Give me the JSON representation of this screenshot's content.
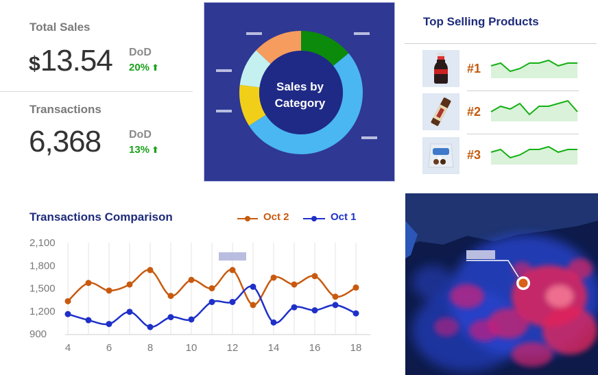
{
  "kpis": {
    "total_sales": {
      "title": "Total Sales",
      "currency": "$",
      "value": "13.54",
      "dod_label": "DoD",
      "change": "20%"
    },
    "transactions": {
      "title": "Transactions",
      "value": "6,368",
      "dod_label": "DoD",
      "change": "13%"
    }
  },
  "donut": {
    "center_line1": "Sales by",
    "center_line2": "Category",
    "colors": {
      "panel": "#2f3893",
      "center": "#1f2a86"
    },
    "slices": [
      {
        "value": 14,
        "color": "#0c8a0c"
      },
      {
        "value": 52,
        "color": "#4ab6f2"
      },
      {
        "value": 11,
        "color": "#f1cf18"
      },
      {
        "value": 10,
        "color": "#c4f1ef"
      },
      {
        "value": 13,
        "color": "#f69c5e"
      }
    ]
  },
  "top_selling": {
    "title": "Top Selling Products",
    "products": [
      {
        "rank": "#1",
        "image": "cola-bottle",
        "trend": [
          5,
          6,
          3,
          4,
          6,
          6,
          7,
          5,
          6,
          6
        ]
      },
      {
        "rank": "#2",
        "image": "chocolate-bar",
        "trend": [
          4,
          6,
          5,
          7,
          3,
          6,
          6,
          7,
          8,
          4
        ]
      },
      {
        "rank": "#3",
        "image": "candy-bag",
        "trend": [
          5,
          6,
          3,
          4,
          6,
          6,
          7,
          5,
          6,
          6
        ]
      }
    ]
  },
  "comparison": {
    "title": "Transactions Comparison",
    "legend": [
      {
        "label": "Oct 2",
        "color": "#c85a0f"
      },
      {
        "label": "Oct 1",
        "color": "#1e30c8"
      }
    ]
  },
  "chart_data": {
    "type": "line",
    "x": [
      4,
      5,
      6,
      7,
      8,
      9,
      10,
      11,
      12,
      13,
      14,
      15,
      16,
      17,
      18
    ],
    "x_ticks": [
      4,
      6,
      8,
      10,
      12,
      14,
      16,
      18
    ],
    "y_ticks": [
      "900",
      "1,200",
      "1,500",
      "1,800",
      "2,100"
    ],
    "ylim": [
      900,
      2100
    ],
    "series": [
      {
        "name": "Oct 2",
        "color": "#c85a0f",
        "values": [
          1330,
          1570,
          1470,
          1550,
          1740,
          1400,
          1610,
          1500,
          1740,
          1280,
          1640,
          1550,
          1660,
          1390,
          1510
        ]
      },
      {
        "name": "Oct 1",
        "color": "#1e30c8",
        "values": [
          1160,
          1080,
          1030,
          1190,
          990,
          1120,
          1090,
          1320,
          1320,
          1520,
          1050,
          1250,
          1210,
          1280,
          1170
        ]
      }
    ],
    "grid": "vertical"
  }
}
